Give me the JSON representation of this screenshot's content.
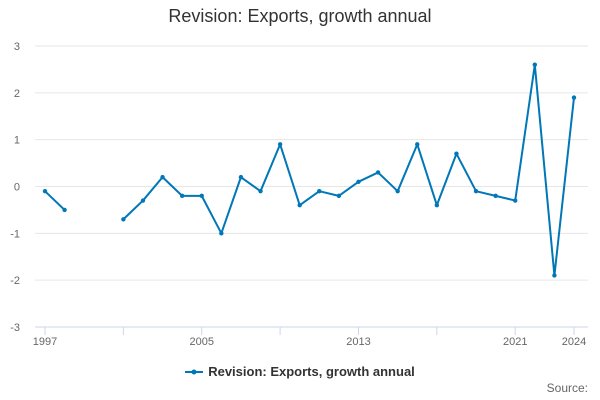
{
  "chart_data": {
    "type": "line",
    "title": "Revision: Exports, growth annual",
    "xlabel": "",
    "ylabel": "",
    "xlim": [
      1997,
      2024
    ],
    "ylim": [
      -3,
      3
    ],
    "yticks": [
      -3,
      -2,
      -1,
      0,
      1,
      2,
      3
    ],
    "xtick_labels": [
      1997,
      2005,
      2013,
      2021,
      2024
    ],
    "grid": true,
    "legend_position": "bottom",
    "series": [
      {
        "name": "Revision: Exports, growth annual",
        "color": "#0077b6",
        "x": [
          1997,
          1998,
          1999,
          2000,
          2001,
          2002,
          2003,
          2004,
          2005,
          2006,
          2007,
          2008,
          2009,
          2010,
          2011,
          2012,
          2013,
          2014,
          2015,
          2016,
          2017,
          2018,
          2019,
          2020,
          2021,
          2022,
          2023,
          2024
        ],
        "values": [
          -0.1,
          -0.5,
          null,
          null,
          -0.7,
          -0.3,
          0.2,
          -0.2,
          -0.2,
          -1.0,
          0.2,
          -0.1,
          0.9,
          -0.4,
          -0.1,
          -0.2,
          0.1,
          0.3,
          -0.1,
          0.9,
          -0.4,
          0.7,
          -0.1,
          -0.2,
          -0.3,
          2.6,
          -1.9,
          1.9
        ]
      }
    ]
  },
  "footer": {
    "source_label": "Source:"
  }
}
